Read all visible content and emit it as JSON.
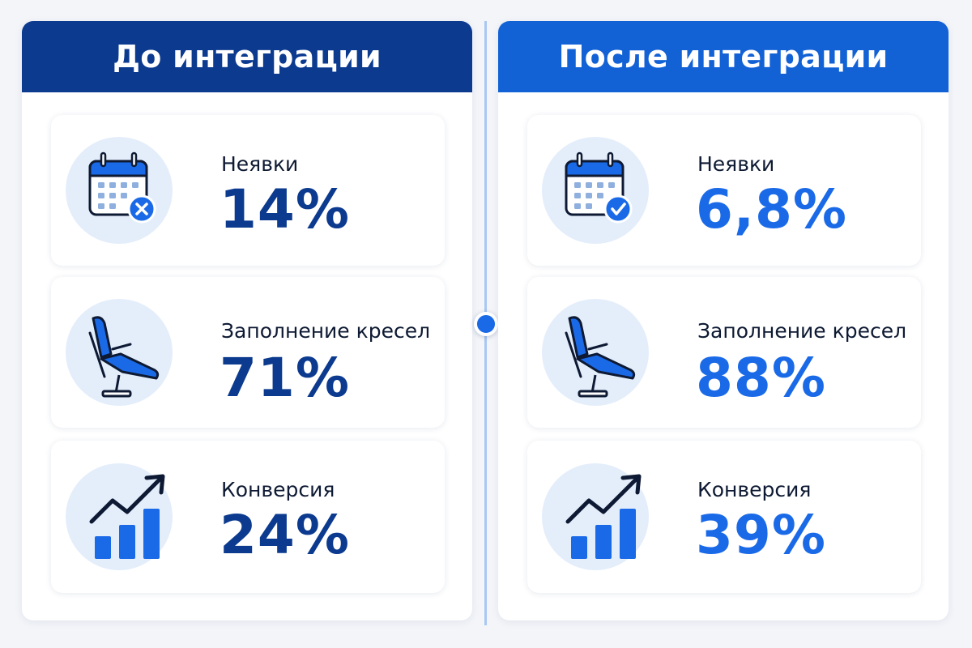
{
  "colors": {
    "before_header": "#0b3a8f",
    "after_header": "#1262d6",
    "before_value": "#0b3a8f",
    "after_value": "#1a6ae8",
    "icon_circle": "#e4eefb",
    "divider": "#a9c8f3"
  },
  "before": {
    "title": "До интеграции",
    "metrics": [
      {
        "icon": "calendar-x-icon",
        "label": "Неявки",
        "value": "14%"
      },
      {
        "icon": "dental-chair-icon",
        "label": "Заполнение кресел",
        "value": "71%"
      },
      {
        "icon": "growth-chart-icon",
        "label": "Конверсия",
        "value": "24%"
      }
    ]
  },
  "after": {
    "title": "После интеграции",
    "metrics": [
      {
        "icon": "calendar-check-icon",
        "label": "Неявки",
        "value": "6,8%"
      },
      {
        "icon": "dental-chair-icon",
        "label": "Заполнение кресел",
        "value": "88%"
      },
      {
        "icon": "growth-chart-icon",
        "label": "Конверсия",
        "value": "39%"
      }
    ]
  }
}
